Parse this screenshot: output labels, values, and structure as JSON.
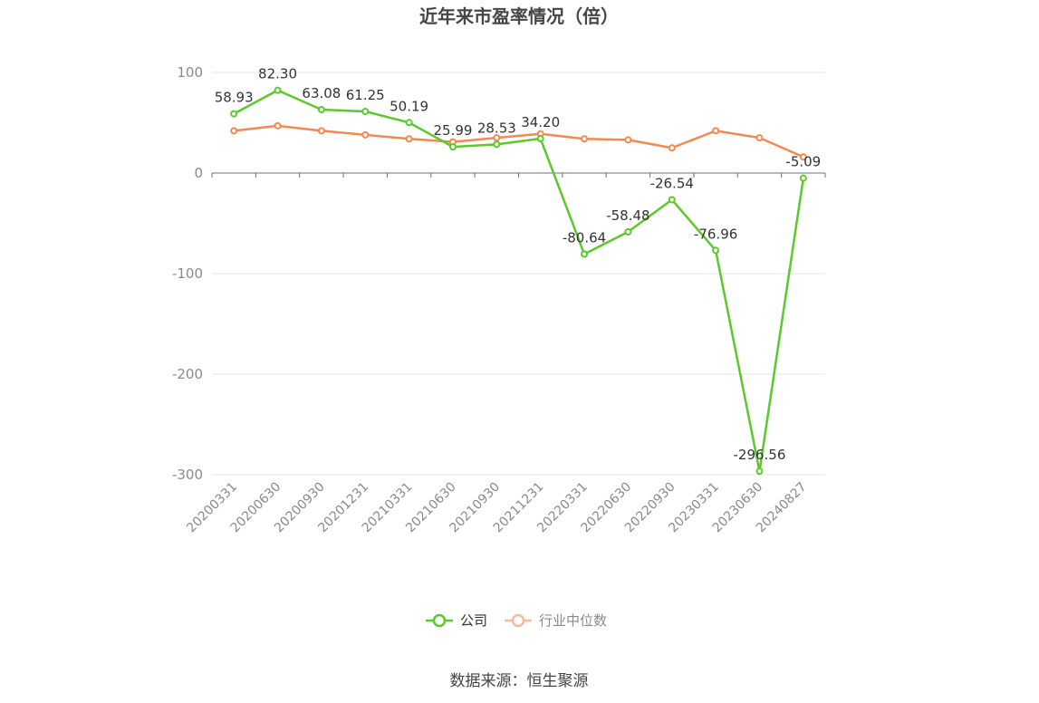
{
  "chart_data": {
    "type": "line",
    "title": "近年来市盈率情况（倍）",
    "categories": [
      "20200331",
      "20200630",
      "20200930",
      "20201231",
      "20210331",
      "20210630",
      "20210930",
      "20211231",
      "20220331",
      "20220630",
      "20220930",
      "20230331",
      "20230630",
      "20240827"
    ],
    "series": [
      {
        "name": "公司",
        "color": "#5cc92b",
        "values": [
          58.93,
          82.3,
          63.08,
          61.25,
          50.19,
          25.99,
          28.53,
          34.2,
          -80.64,
          -58.48,
          -26.54,
          -76.96,
          -296.56,
          -5.09
        ],
        "labels": [
          "58.93",
          "82.30",
          "63.08",
          "61.25",
          "50.19",
          "25.99",
          "28.53",
          "34.20",
          "-80.64",
          "-58.48",
          "-26.54",
          "-76.96",
          "-296.56",
          "-5.09"
        ]
      },
      {
        "name": "行业中位数",
        "color": "#f08a50",
        "values": [
          42,
          47,
          42,
          38,
          34,
          31,
          35,
          39,
          34,
          33,
          25,
          42,
          35,
          16
        ]
      }
    ],
    "yticks": [
      "100",
      "0",
      "-100",
      "-200",
      "-300"
    ],
    "ylim": [
      -300,
      100
    ],
    "grid": true,
    "legend": "bottom-center"
  },
  "source": "数据来源：恒生聚源"
}
